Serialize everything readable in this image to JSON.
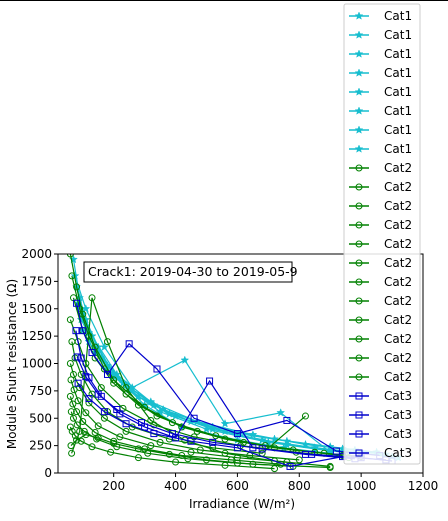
{
  "chart_data": {
    "type": "line",
    "annotation": "Crack1: 2019-04-30 to 2019-05-9",
    "xlabel": "Irradiance (W/m²)",
    "ylabel": "Module Shunt resistance (Ω)",
    "xlim": [
      20,
      1200
    ],
    "ylim": [
      0,
      2000
    ],
    "xticks": [
      200,
      400,
      600,
      800,
      1000,
      1200
    ],
    "yticks": [
      0,
      250,
      500,
      750,
      1000,
      1250,
      1500,
      1750,
      2000
    ],
    "legend_position": "upper right, outside plot",
    "categories": [
      {
        "name": "Cat1",
        "color": "#17BECF",
        "marker": "star",
        "count": 8
      },
      {
        "name": "Cat2",
        "color": "#008000",
        "marker": "circle",
        "count": 12
      },
      {
        "name": "Cat3",
        "color": "#0000CC",
        "marker": "square",
        "count": 4
      }
    ],
    "series": [
      {
        "name": "Cat1",
        "category": "Cat1",
        "x": [
          70,
          90,
          110,
          150,
          200,
          300,
          420,
          600,
          750,
          900
        ],
        "y": [
          1950,
          1600,
          1400,
          1150,
          900,
          620,
          420,
          300,
          230,
          180
        ]
      },
      {
        "name": "Cat1",
        "category": "Cat1",
        "x": [
          80,
          100,
          130,
          180,
          250,
          350,
          500,
          700,
          850,
          1000
        ],
        "y": [
          1700,
          1450,
          1250,
          980,
          760,
          560,
          400,
          280,
          220,
          170
        ]
      },
      {
        "name": "Cat1",
        "category": "Cat1",
        "x": [
          90,
          120,
          160,
          230,
          330,
          450,
          600,
          760,
          950,
          1100
        ],
        "y": [
          1500,
          1280,
          1050,
          820,
          620,
          470,
          350,
          260,
          200,
          150
        ]
      },
      {
        "name": "Cat1",
        "category": "Cat1",
        "x": [
          100,
          140,
          200,
          280,
          380,
          520,
          680,
          850,
          1000,
          1120
        ],
        "y": [
          1300,
          1100,
          880,
          700,
          540,
          400,
          300,
          230,
          180,
          140
        ]
      },
      {
        "name": "Cat1",
        "category": "Cat1",
        "x": [
          75,
          110,
          170,
          260,
          430,
          560,
          740,
          900
        ],
        "y": [
          1800,
          1500,
          1150,
          780,
          1030,
          450,
          550,
          190
        ]
      },
      {
        "name": "Cat1",
        "category": "Cat1",
        "x": [
          85,
          130,
          210,
          320,
          470,
          650,
          820,
          980
        ],
        "y": [
          1550,
          1250,
          900,
          650,
          470,
          350,
          260,
          210
        ]
      },
      {
        "name": "Cat1",
        "category": "Cat1",
        "x": [
          95,
          150,
          240,
          360,
          520,
          720,
          900,
          1050
        ],
        "y": [
          1400,
          1100,
          800,
          580,
          420,
          310,
          240,
          190
        ]
      },
      {
        "name": "Cat1",
        "category": "Cat1",
        "x": [
          120,
          180,
          280,
          400,
          560,
          760,
          940,
          1080
        ],
        "y": [
          1200,
          950,
          700,
          520,
          380,
          290,
          220,
          170
        ]
      },
      {
        "name": "Cat2",
        "category": "Cat2",
        "x": [
          60,
          80,
          100,
          140,
          200,
          300,
          420,
          560,
          720,
          880
        ],
        "y": [
          2000,
          1700,
          1450,
          1150,
          850,
          600,
          420,
          310,
          230,
          180
        ]
      },
      {
        "name": "Cat2",
        "category": "Cat2",
        "x": [
          65,
          90,
          120,
          170,
          240,
          340,
          470,
          620,
          780,
          940
        ],
        "y": [
          1800,
          1500,
          1250,
          950,
          720,
          520,
          380,
          280,
          210,
          160
        ]
      },
      {
        "name": "Cat2",
        "category": "Cat2",
        "x": [
          70,
          100,
          140,
          200,
          280,
          390,
          530,
          690,
          850,
          1000
        ],
        "y": [
          1600,
          1300,
          1050,
          820,
          620,
          460,
          340,
          250,
          190,
          150
        ]
      },
      {
        "name": "Cat2",
        "category": "Cat2",
        "x": [
          60,
          85,
          110,
          160,
          230,
          330,
          460,
          610,
          790,
          960
        ],
        "y": [
          1400,
          1200,
          1000,
          780,
          590,
          440,
          330,
          250,
          190,
          140
        ]
      },
      {
        "name": "Cat2",
        "category": "Cat2",
        "x": [
          65,
          75,
          95,
          130,
          180,
          260,
          380,
          520,
          680,
          820
        ],
        "y": [
          1200,
          1050,
          900,
          720,
          560,
          420,
          310,
          230,
          180,
          520
        ]
      },
      {
        "name": "Cat2",
        "category": "Cat2",
        "x": [
          60,
          70,
          90,
          120,
          170,
          240,
          350,
          480,
          640,
          800
        ],
        "y": [
          1000,
          900,
          780,
          640,
          500,
          380,
          280,
          210,
          160,
          120
        ]
      },
      {
        "name": "Cat2",
        "category": "Cat2",
        "x": [
          62,
          72,
          85,
          110,
          150,
          220,
          320,
          450,
          600,
          760
        ],
        "y": [
          850,
          760,
          660,
          550,
          430,
          330,
          250,
          190,
          140,
          100
        ]
      },
      {
        "name": "Cat2",
        "category": "Cat2",
        "x": [
          60,
          68,
          80,
          100,
          140,
          200,
          300,
          420,
          580,
          740
        ],
        "y": [
          700,
          630,
          560,
          470,
          370,
          290,
          220,
          160,
          120,
          80
        ]
      },
      {
        "name": "Cat2",
        "category": "Cat2",
        "x": [
          63,
          70,
          82,
          105,
          145,
          210,
          310,
          440,
          600,
          780
        ],
        "y": [
          560,
          500,
          440,
          380,
          310,
          240,
          180,
          130,
          90,
          60
        ]
      },
      {
        "name": "Cat2",
        "category": "Cat2",
        "x": [
          60,
          66,
          76,
          95,
          130,
          190,
          280,
          400,
          560,
          720
        ],
        "y": [
          420,
          380,
          340,
          290,
          240,
          190,
          140,
          100,
          70,
          40
        ]
      },
      {
        "name": "Cat2",
        "category": "Cat2",
        "x": [
          62,
          80,
          110,
          150,
          200,
          280,
          380,
          500,
          650,
          900
        ],
        "y": [
          250,
          300,
          350,
          320,
          270,
          220,
          170,
          120,
          80,
          50
        ]
      },
      {
        "name": "Cat2",
        "category": "Cat2",
        "x": [
          64,
          90,
          130,
          180,
          240,
          320,
          430,
          560,
          720,
          900
        ],
        "y": [
          180,
          380,
          1600,
          1200,
          780,
          480,
          300,
          180,
          110,
          60
        ]
      },
      {
        "name": "Cat3",
        "category": "Cat3",
        "x": [
          80,
          100,
          130,
          180,
          250,
          340,
          460,
          600,
          760,
          920,
          1060
        ],
        "y": [
          1550,
          1300,
          1100,
          900,
          1180,
          950,
          500,
          360,
          480,
          200,
          160
        ]
      },
      {
        "name": "Cat3",
        "category": "Cat3",
        "x": [
          78,
          95,
          120,
          160,
          220,
          300,
          400,
          510,
          650,
          820,
          980
        ],
        "y": [
          1300,
          1050,
          870,
          700,
          540,
          420,
          320,
          840,
          230,
          170,
          130
        ]
      },
      {
        "name": "Cat3",
        "category": "Cat3",
        "x": [
          82,
          110,
          150,
          210,
          290,
          390,
          520,
          680,
          840,
          1000,
          1100
        ],
        "y": [
          1060,
          880,
          720,
          580,
          460,
          360,
          280,
          220,
          170,
          140,
          110
        ]
      },
      {
        "name": "Cat3",
        "category": "Cat3",
        "x": [
          85,
          120,
          170,
          240,
          330,
          450,
          600,
          770,
          940,
          1080
        ],
        "y": [
          820,
          680,
          560,
          450,
          360,
          290,
          230,
          60,
          150,
          120
        ]
      }
    ]
  }
}
